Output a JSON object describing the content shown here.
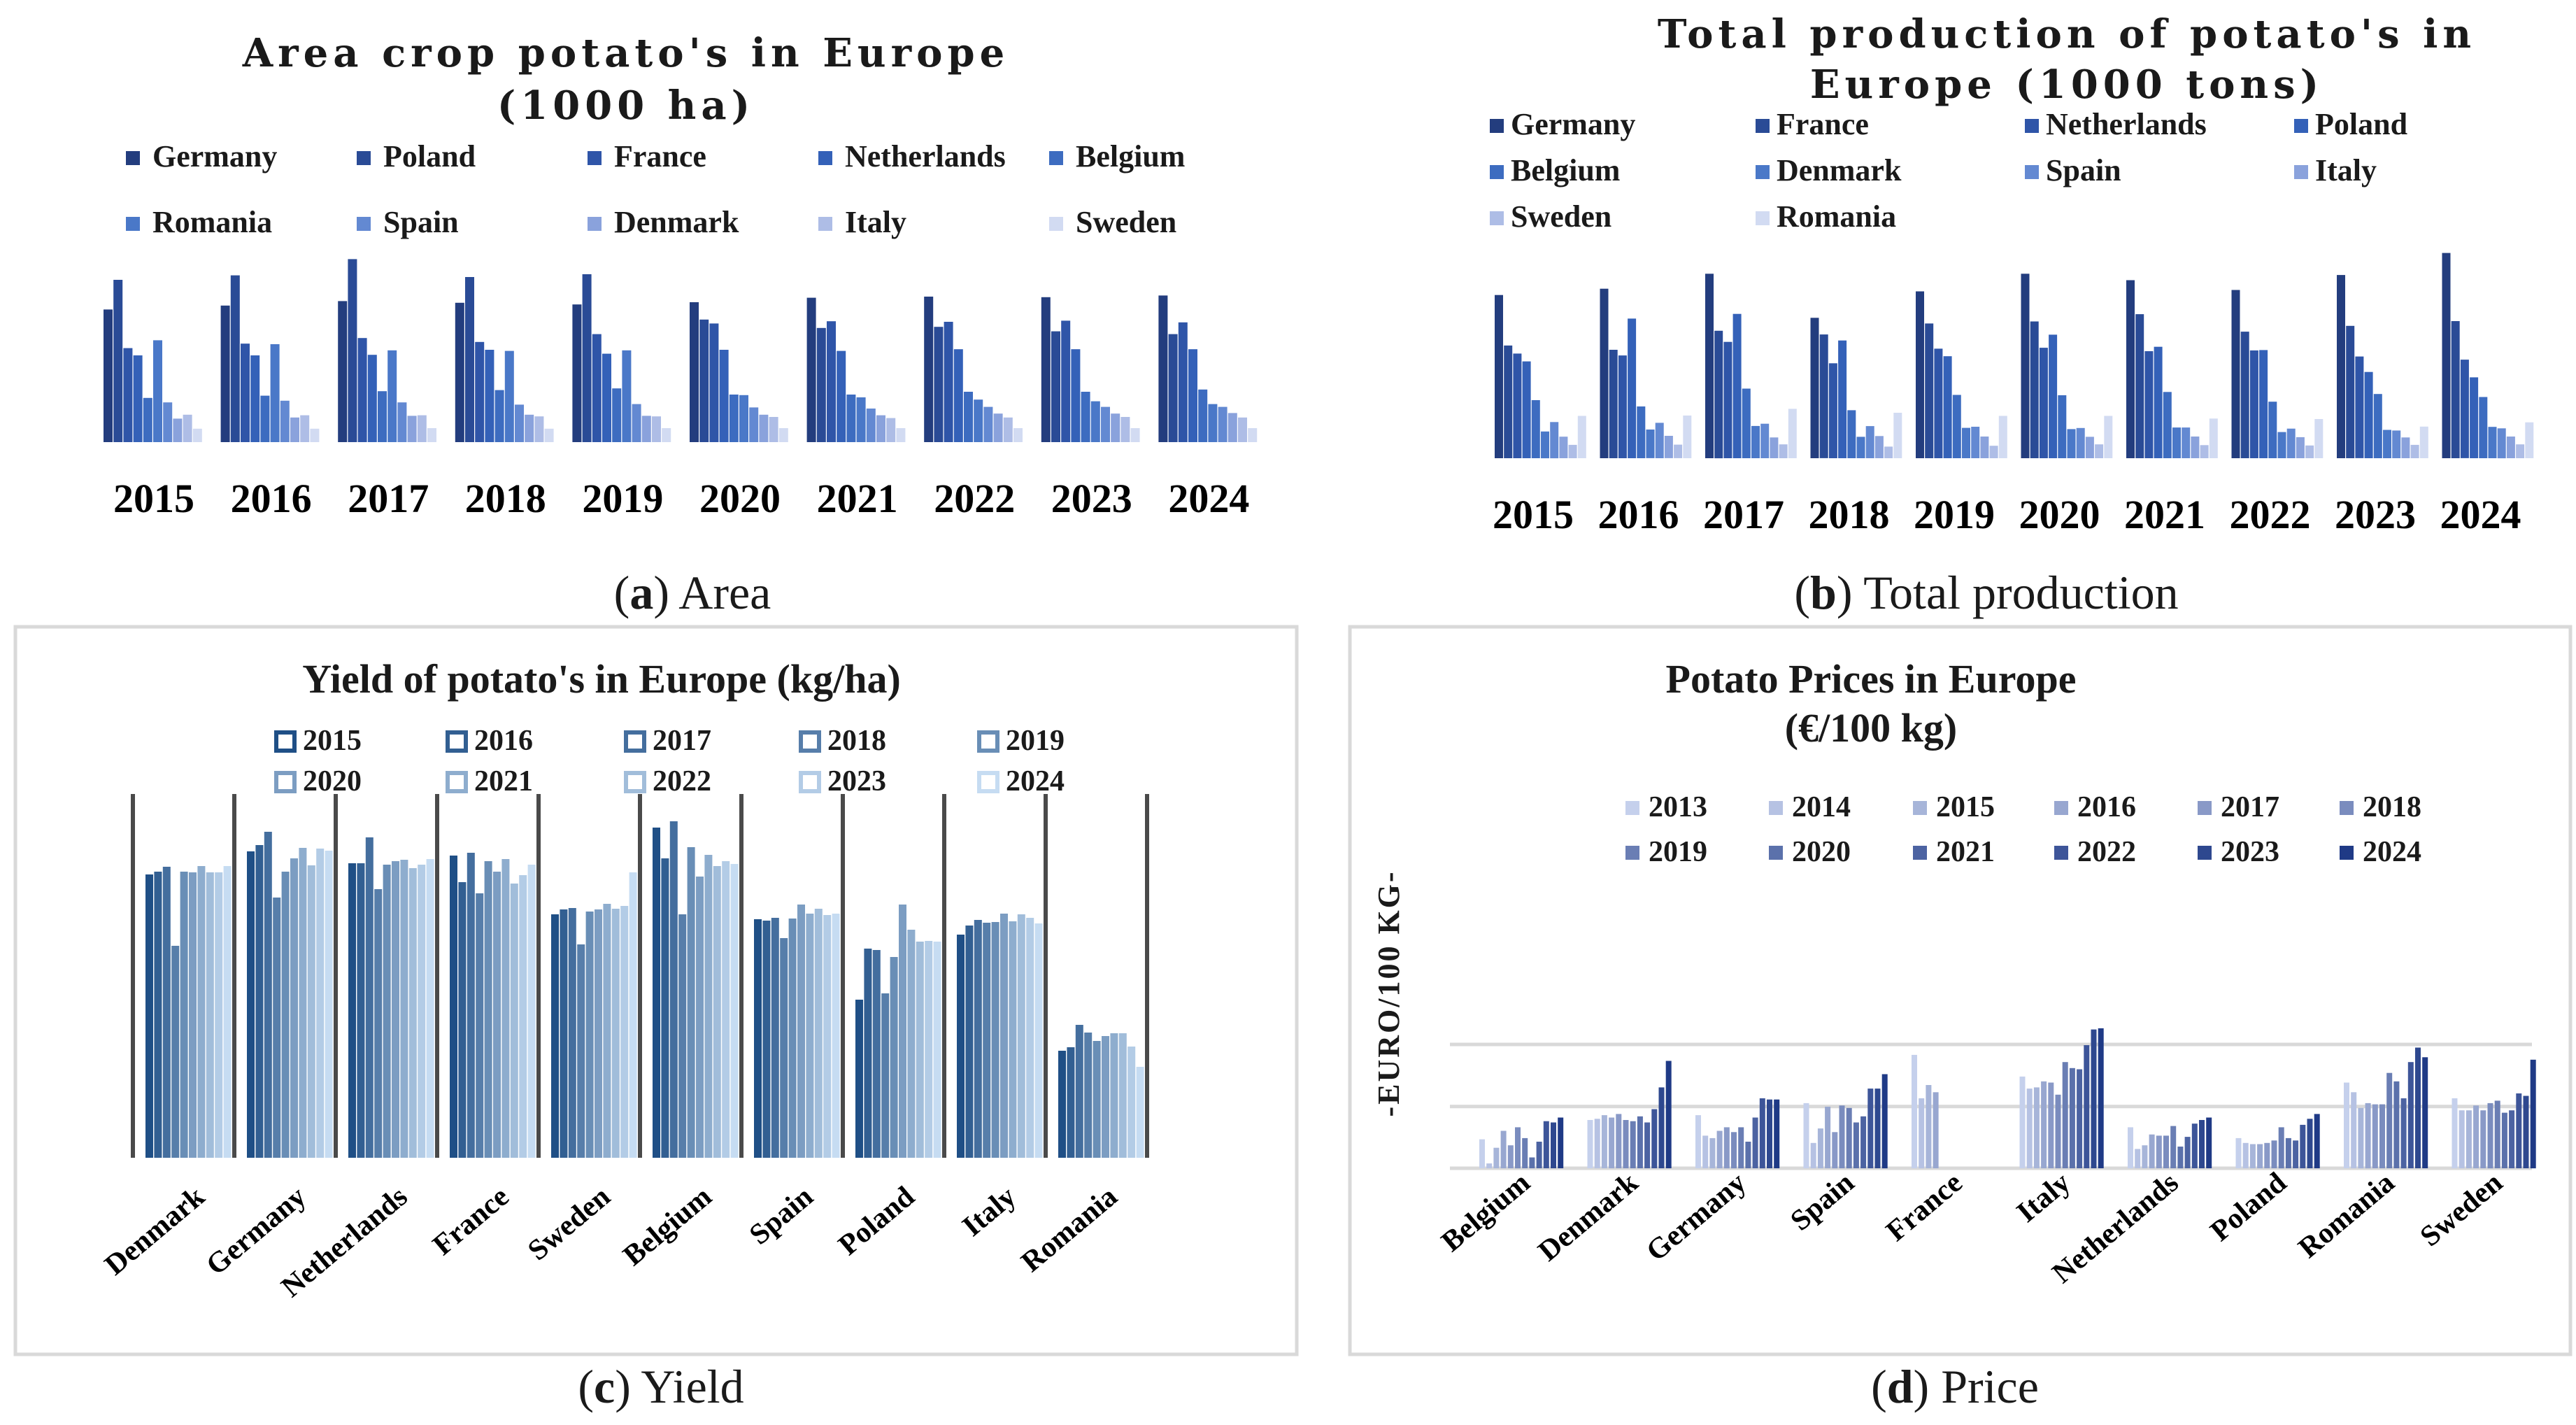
{
  "captions": {
    "a": {
      "letter": "a",
      "text": " Area"
    },
    "b": {
      "letter": "b",
      "text": " Total production"
    },
    "c": {
      "letter": "c",
      "text": " Yield"
    },
    "d": {
      "letter": "d",
      "text": " Price"
    }
  },
  "chart_data": [
    {
      "id": "area",
      "type": "bar",
      "title_lines": [
        "Area crop potato's in Europe",
        "(1000 ha)"
      ],
      "categories": [
        "2015",
        "2016",
        "2017",
        "2018",
        "2019",
        "2020",
        "2021",
        "2022",
        "2023",
        "2024"
      ],
      "legend_order": [
        "Germany",
        "Poland",
        "France",
        "Netherlands",
        "Belgium",
        "Romania",
        "Spain",
        "Denmark",
        "Italy",
        "Sweden"
      ],
      "series": [
        {
          "name": "Germany",
          "values": [
            237,
            244,
            252,
            249,
            246,
            250,
            258,
            260,
            259,
            262
          ],
          "color": "#233d7e"
        },
        {
          "name": "Poland",
          "values": [
            290,
            298,
            327,
            295,
            300,
            219,
            204,
            206,
            198,
            193
          ],
          "color": "#2a4b96"
        },
        {
          "name": "France",
          "values": [
            168,
            176,
            186,
            179,
            193,
            212,
            216,
            215,
            217,
            214
          ],
          "color": "#2f55a8"
        },
        {
          "name": "Netherlands",
          "values": [
            155,
            155,
            156,
            165,
            158,
            165,
            163,
            166,
            166,
            166
          ],
          "color": "#3461b8"
        },
        {
          "name": "Belgium",
          "values": [
            79,
            83,
            91,
            93,
            96,
            85,
            85,
            90,
            90,
            94
          ],
          "color": "#3d6cc0"
        },
        {
          "name": "Romania",
          "values": [
            182,
            175,
            164,
            163,
            164,
            84,
            80,
            76,
            73,
            68
          ],
          "color": "#4a78c8"
        },
        {
          "name": "Spain",
          "values": [
            71,
            74,
            71,
            67,
            68,
            62,
            60,
            63,
            63,
            63
          ],
          "color": "#6389d2"
        },
        {
          "name": "Denmark",
          "values": [
            42,
            44,
            47,
            49,
            47,
            49,
            48,
            51,
            51,
            52
          ],
          "color": "#8aa2dc"
        },
        {
          "name": "Italy",
          "values": [
            49,
            48,
            48,
            46,
            46,
            45,
            43,
            44,
            45,
            44
          ],
          "color": "#aebde6"
        },
        {
          "name": "Sweden",
          "values": [
            24,
            24,
            25,
            24,
            25,
            25,
            25,
            25,
            25,
            25
          ],
          "color": "#d2dbf2"
        }
      ]
    },
    {
      "id": "production",
      "type": "bar",
      "title_lines": [
        "Total production of potato's in",
        "Europe (1000 tons)"
      ],
      "categories": [
        "2015",
        "2016",
        "2017",
        "2018",
        "2019",
        "2020",
        "2021",
        "2022",
        "2023",
        "2024"
      ],
      "legend_order": [
        "Germany",
        "France",
        "Netherlands",
        "Poland",
        "Belgium",
        "Denmark",
        "Spain",
        "Italy",
        "Sweden",
        "Romania"
      ],
      "series": [
        {
          "name": "Germany",
          "values": [
            10370,
            10770,
            11720,
            8920,
            10600,
            11720,
            11310,
            10690,
            11640,
            13040
          ]
        },
        {
          "name": "France",
          "values": [
            7160,
            6890,
            8100,
            7860,
            8560,
            8690,
            9150,
            8040,
            8410,
            8710
          ]
        },
        {
          "name": "Netherlands",
          "values": [
            6650,
            6530,
            7390,
            6030,
            6960,
            7020,
            6800,
            6850,
            6460,
            6260
          ]
        },
        {
          "name": "Poland",
          "values": [
            6150,
            8870,
            9170,
            7480,
            6480,
            7850,
            7080,
            6870,
            5480,
            5140
          ]
        },
        {
          "name": "Belgium",
          "values": [
            3690,
            3290,
            4420,
            3050,
            4020,
            4000,
            4210,
            3590,
            4080,
            3890
          ]
        },
        {
          "name": "Denmark",
          "values": [
            1700,
            1820,
            2050,
            1360,
            1930,
            1850,
            1950,
            1660,
            1800,
            1990
          ]
        },
        {
          "name": "Spain",
          "values": [
            2300,
            2250,
            2190,
            2040,
            2000,
            1920,
            1950,
            1880,
            1760,
            1900
          ]
        },
        {
          "name": "Italy",
          "values": [
            1370,
            1420,
            1320,
            1410,
            1380,
            1360,
            1380,
            1340,
            1320,
            1380
          ]
        },
        {
          "name": "Sweden",
          "values": [
            850,
            860,
            880,
            740,
            790,
            880,
            830,
            810,
            850,
            880
          ]
        },
        {
          "name": "Romania",
          "values": [
            2690,
            2710,
            3140,
            2890,
            2690,
            2690,
            2520,
            2490,
            2010,
            2280
          ]
        }
      ]
    },
    {
      "id": "yield",
      "type": "bar",
      "title": "Yield of potato's in Europe (kg/ha)",
      "categories": [
        "Denmark",
        "Germany",
        "Netherlands",
        "France",
        "Sweden",
        "Belgium",
        "Spain",
        "Poland",
        "Italy",
        "Romania"
      ],
      "series_names": [
        "2015",
        "2016",
        "2017",
        "2018",
        "2019",
        "2020",
        "2021",
        "2022",
        "2023",
        "2024"
      ],
      "values": [
        [
          40500,
          40900,
          41600,
          30300,
          40900,
          40800,
          41700,
          40800,
          40800,
          41700
        ],
        [
          43800,
          44700,
          46600,
          37200,
          40900,
          42800,
          44300,
          41800,
          44200,
          43900
        ],
        [
          42100,
          42100,
          45800,
          38400,
          41900,
          42400,
          42600,
          41400,
          41900,
          42700
        ],
        [
          43200,
          39400,
          43600,
          37800,
          42400,
          40900,
          42700,
          39200,
          40400,
          41900
        ],
        [
          34800,
          35500,
          35700,
          30500,
          35200,
          35500,
          36300,
          35600,
          36000,
          40800
        ],
        [
          47200,
          42800,
          48100,
          34800,
          44400,
          40200,
          43300,
          41700,
          42400,
          42000
        ],
        [
          34100,
          33900,
          34300,
          31400,
          34200,
          36200,
          34900,
          35600,
          34700,
          34900
        ],
        [
          22600,
          29900,
          29700,
          23500,
          28700,
          36200,
          32600,
          30900,
          31000,
          30900
        ],
        [
          31900,
          33200,
          34000,
          33600,
          33700,
          34900,
          33800,
          34800,
          34300,
          33500
        ],
        [
          15300,
          15800,
          19000,
          17900,
          16700,
          17400,
          17800,
          17800,
          15900,
          13000
        ]
      ],
      "ymax": 52000
    },
    {
      "id": "price",
      "type": "bar",
      "title_lines": [
        "Potato Prices in Europe",
        "(€/100 kg)"
      ],
      "ylabel": "-EURO/100 KG-",
      "categories": [
        "Belgium",
        "Denmark",
        "Germany",
        "Spain",
        "France",
        "Italy",
        "Netherlands",
        "Poland",
        "Romania",
        "Sweden"
      ],
      "series_names": [
        "2013",
        "2014",
        "2015",
        "2016",
        "2017",
        "2018",
        "2019",
        "2020",
        "2021",
        "2022",
        "2023",
        "2024"
      ],
      "values": [
        [
          12.0,
          2.0,
          8.5,
          15.5,
          9.5,
          17.0,
          12.5,
          4.5,
          11.0,
          19.5,
          19.0,
          21.0
        ],
        [
          20.0,
          20.5,
          22.0,
          21.0,
          22.5,
          20.0,
          19.5,
          21.5,
          19.0,
          24.5,
          33.5,
          44.5
        ],
        [
          22.0,
          13.5,
          12.5,
          15.5,
          17.0,
          15.0,
          17.0,
          11.0,
          21.0,
          29.0,
          28.5,
          28.5
        ],
        [
          27.0,
          10.5,
          16.5,
          25.5,
          15.0,
          26.0,
          25.0,
          19.0,
          21.5,
          33.0,
          33.0,
          39.0
        ],
        [
          47.0,
          29.0,
          34.5,
          31.5,
          0,
          0,
          0,
          0,
          0,
          0,
          0,
          0
        ],
        [
          38.0,
          33.0,
          33.5,
          36.0,
          35.5,
          30.5,
          44.0,
          41.5,
          41.0,
          51.0,
          57.5,
          58.0
        ],
        [
          17.0,
          8.0,
          9.5,
          14.0,
          13.5,
          13.5,
          17.5,
          9.0,
          13.0,
          18.5,
          20.0,
          21.0
        ],
        [
          12.5,
          10.5,
          10.0,
          10.0,
          10.5,
          11.5,
          17.0,
          12.5,
          11.5,
          18.0,
          20.5,
          22.5
        ],
        [
          35.5,
          31.5,
          25.0,
          27.0,
          26.5,
          26.5,
          39.5,
          36.0,
          29.0,
          44.0,
          50.0,
          46.0
        ],
        [
          29.0,
          24.0,
          24.0,
          26.0,
          24.0,
          27.0,
          28.0,
          23.0,
          24.0,
          31.0,
          30.0,
          45.0
        ]
      ],
      "ymax": 80
    }
  ]
}
